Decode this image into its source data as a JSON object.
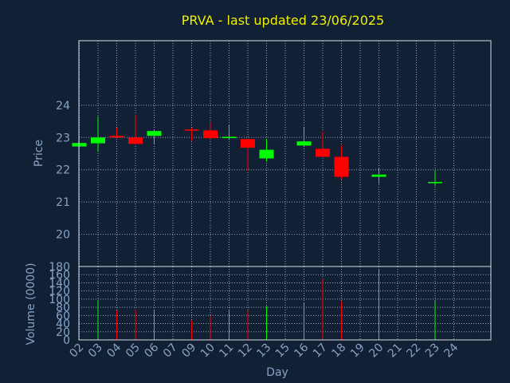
{
  "chart_data": {
    "type": "candlestick",
    "title": "PRVA - last updated 23/06/2025",
    "xlabel": "Day",
    "price_panel": {
      "ylabel": "Price",
      "ylim": [
        19.0,
        26.0
      ],
      "yticks": [
        20,
        21,
        22,
        23,
        24
      ]
    },
    "volume_panel": {
      "ylabel": "Volume (0000)",
      "ylim": [
        0,
        180
      ],
      "yticks": [
        0,
        20,
        40,
        60,
        80,
        100,
        120,
        140,
        160,
        180
      ]
    },
    "x_ticks": [
      "02",
      "03",
      "04",
      "05",
      "06",
      "07",
      "09",
      "10",
      "11",
      "12",
      "13",
      "15",
      "16",
      "17",
      "18",
      "19",
      "20",
      "21",
      "22",
      "23",
      "24"
    ],
    "candles": [
      {
        "day": "02",
        "open": 22.72,
        "high": 22.85,
        "low": 22.7,
        "close": 22.83,
        "volume": 0
      },
      {
        "day": "03",
        "open": 22.82,
        "high": 23.65,
        "low": 22.55,
        "close": 23.0,
        "volume": 97
      },
      {
        "day": "04",
        "open": 23.05,
        "high": 23.3,
        "low": 22.98,
        "close": 23.0,
        "volume": 72
      },
      {
        "day": "05",
        "open": 23.0,
        "high": 23.7,
        "low": 22.78,
        "close": 22.8,
        "volume": 75
      },
      {
        "day": "06",
        "open": 23.05,
        "high": 23.25,
        "low": 22.8,
        "close": 23.2,
        "volume": 73
      },
      {
        "day": "09",
        "open": 23.25,
        "high": 23.3,
        "low": 22.9,
        "close": 23.22,
        "volume": 48
      },
      {
        "day": "10",
        "open": 23.22,
        "high": 23.45,
        "low": 22.95,
        "close": 22.98,
        "volume": 60
      },
      {
        "day": "11",
        "open": 22.98,
        "high": 23.4,
        "low": 22.95,
        "close": 23.02,
        "volume": 72
      },
      {
        "day": "12",
        "open": 22.95,
        "high": 22.95,
        "low": 21.95,
        "close": 22.68,
        "volume": 72
      },
      {
        "day": "13",
        "open": 22.35,
        "high": 22.95,
        "low": 22.25,
        "close": 22.62,
        "volume": 83
      },
      {
        "day": "16",
        "open": 22.75,
        "high": 23.3,
        "low": 22.7,
        "close": 22.88,
        "volume": 92
      },
      {
        "day": "17",
        "open": 22.65,
        "high": 23.2,
        "low": 22.4,
        "close": 22.4,
        "volume": 150
      },
      {
        "day": "18",
        "open": 22.4,
        "high": 22.75,
        "low": 21.7,
        "close": 21.78,
        "volume": 95
      },
      {
        "day": "20",
        "open": 21.78,
        "high": 22.05,
        "low": 21.57,
        "close": 21.85,
        "volume": 172
      },
      {
        "day": "23",
        "open": 21.6,
        "high": 21.98,
        "low": 21.5,
        "close": 21.62,
        "volume": 95
      }
    ],
    "grid": true,
    "colors": {
      "background": "#112035",
      "frame": "#d8dce4",
      "grid": "#9aa5b8",
      "title": "#f0f000",
      "axis_text": "#88a3c4",
      "up": "#00ff00",
      "down": "#ff0000",
      "neutral": "#00ff00"
    }
  }
}
